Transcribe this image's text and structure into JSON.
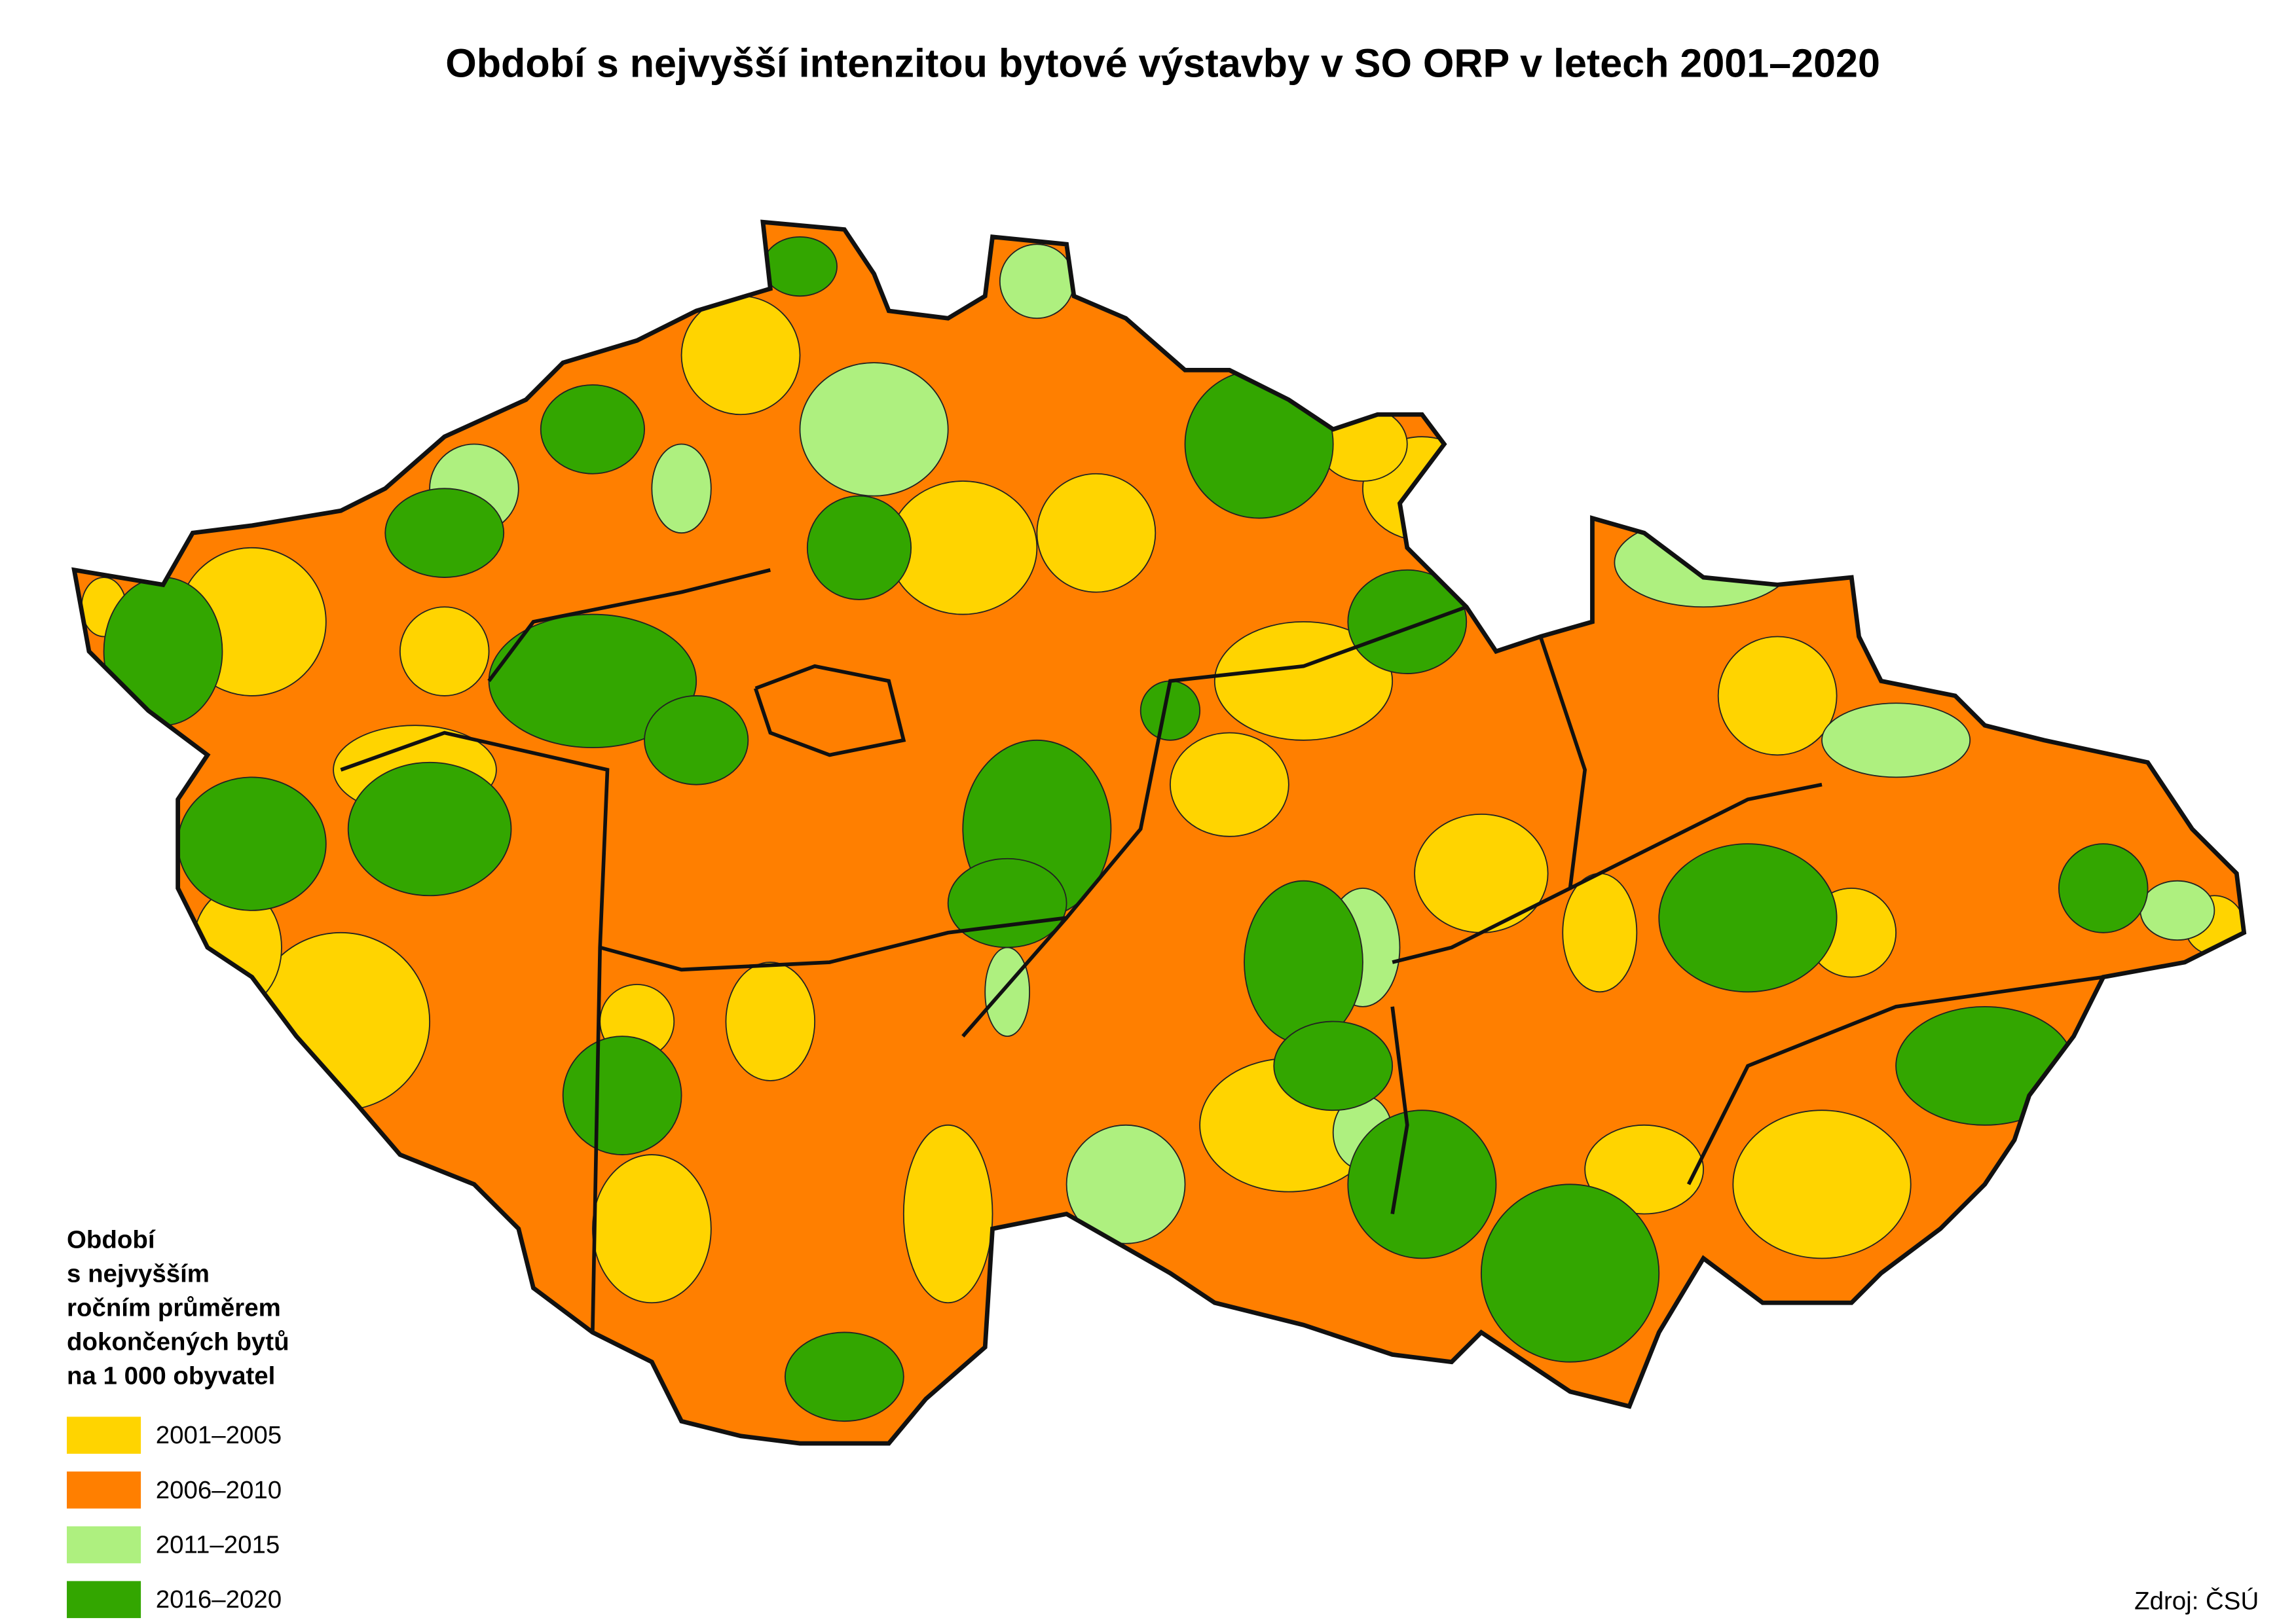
{
  "title": "Období s nejvyšší intenzitou bytové výstavby v SO ORP v letech 2001–2020",
  "legend": {
    "title_lines": [
      "Období",
      "s nejvyšším",
      "ročním průměrem",
      "dokončených bytů",
      "na 1 000 obyvatel"
    ],
    "items": [
      {
        "label": "2001–2005",
        "color": "#ffd400"
      },
      {
        "label": "2006–2010",
        "color": "#ff7f00"
      },
      {
        "label": "2011–2015",
        "color": "#aef07f"
      },
      {
        "label": "2016–2020",
        "color": "#33a600"
      }
    ]
  },
  "source": "Zdroj: ČSÚ"
}
